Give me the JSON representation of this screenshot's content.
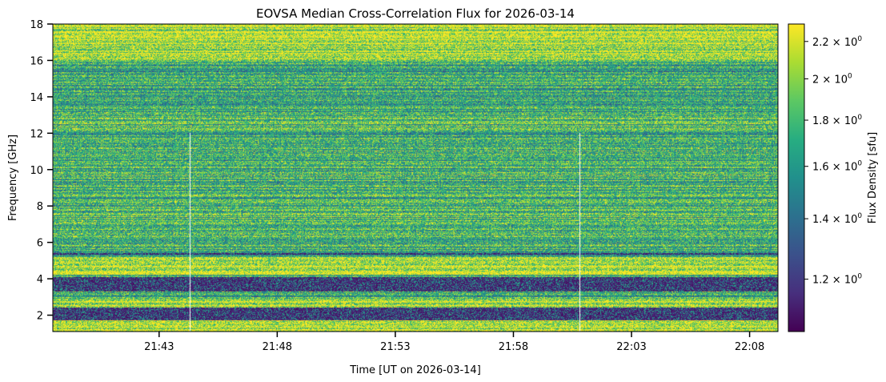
{
  "chart_data": {
    "type": "heatmap",
    "title": "EOVSA Median Cross-Correlation Flux for 2026-03-14",
    "xlabel": "Time [UT on 2026-03-14]",
    "ylabel": "Frequency [GHz]",
    "x_start_minutes": 1298.5,
    "x_end_minutes": 1329.2,
    "xlim_minutes": [
      1298.5,
      1329.2
    ],
    "ylim_ghz": [
      1.1,
      18.0
    ],
    "x_ticks": [
      {
        "minute": 1303,
        "label": "21:43"
      },
      {
        "minute": 1308,
        "label": "21:48"
      },
      {
        "minute": 1313,
        "label": "21:53"
      },
      {
        "minute": 1318,
        "label": "21:58"
      },
      {
        "minute": 1323,
        "label": "22:03"
      },
      {
        "minute": 1328,
        "label": "22:08"
      }
    ],
    "y_ticks": [
      {
        "ghz": 2,
        "label": "2"
      },
      {
        "ghz": 4,
        "label": "4"
      },
      {
        "ghz": 6,
        "label": "6"
      },
      {
        "ghz": 8,
        "label": "8"
      },
      {
        "ghz": 10,
        "label": "10"
      },
      {
        "ghz": 12,
        "label": "12"
      },
      {
        "ghz": 14,
        "label": "14"
      },
      {
        "ghz": 16,
        "label": "16"
      },
      {
        "ghz": 18,
        "label": "18"
      }
    ],
    "colorbar": {
      "label": "Flux Density [sfu]",
      "scale": "log",
      "colormap": "viridis",
      "vmin": 1.05,
      "vmax": 2.3,
      "ticks": [
        {
          "value": 1.2,
          "mantissa": "1.2"
        },
        {
          "value": 1.4,
          "mantissa": "1.4"
        },
        {
          "value": 1.6,
          "mantissa": "1.6"
        },
        {
          "value": 1.8,
          "mantissa": "1.8"
        },
        {
          "value": 2.0,
          "mantissa": "2"
        },
        {
          "value": 2.2,
          "mantissa": "2.2"
        }
      ],
      "exponent_base": "10",
      "exponent": "0"
    },
    "features": {
      "low_flux_bands_ghz": [
        [
          1.7,
          2.4
        ],
        [
          3.3,
          4.1
        ],
        [
          5.3,
          5.4
        ]
      ],
      "high_flux_bands_ghz": [
        [
          1.1,
          1.7
        ],
        [
          2.4,
          2.9
        ],
        [
          4.2,
          5.2
        ],
        [
          16.0,
          18.0
        ]
      ],
      "gap_times_minutes": [
        1304.3,
        1320.8
      ],
      "typical_flux_sfu": 1.8
    }
  },
  "colors": {
    "viridis_low": "#440154",
    "viridis_mid": "#21908c",
    "viridis_high": "#fde725"
  }
}
